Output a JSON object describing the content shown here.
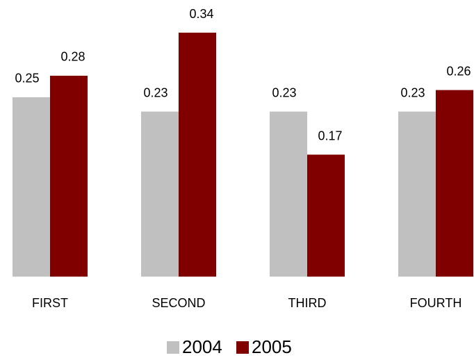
{
  "chart_data": {
    "type": "bar",
    "categories": [
      "FIRST",
      "SECOND",
      "THIRD",
      "FOURTH"
    ],
    "series": [
      {
        "name": "2004",
        "color": "#c0c0c0",
        "values": [
          0.25,
          0.23,
          0.23,
          0.23
        ]
      },
      {
        "name": "2005",
        "color": "#800000",
        "values": [
          0.28,
          0.34,
          0.17,
          0.26
        ]
      }
    ]
  }
}
